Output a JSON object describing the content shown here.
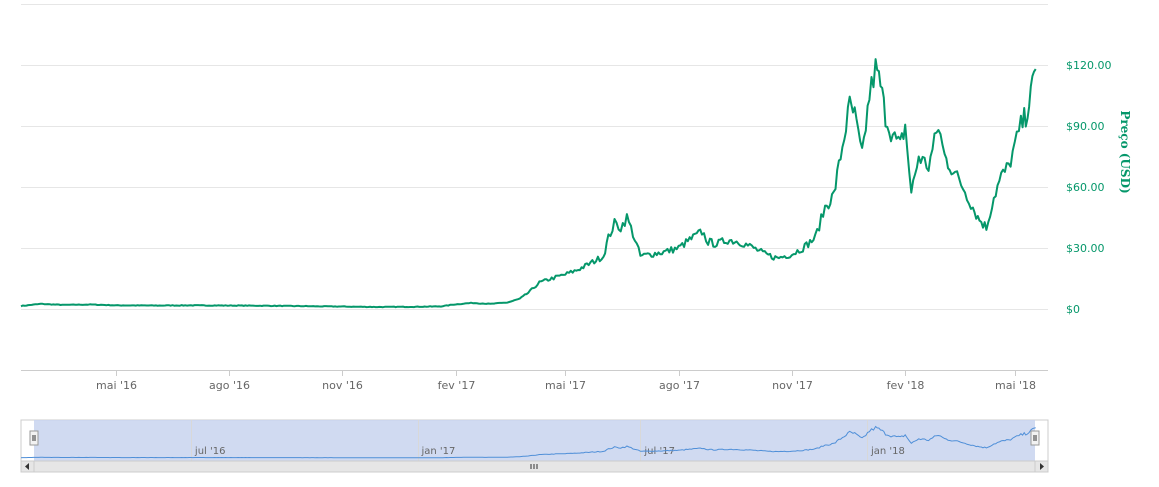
{
  "colors": {
    "line": "#05976a",
    "grid": "#e6e6e6",
    "navigator_fill": "#c8d4ee",
    "navigator_line": "#4f8fd8"
  },
  "chart_data": {
    "type": "line",
    "title": "",
    "xlabel": "",
    "ylabel": "Preço (USD)",
    "ylim": [
      -30,
      150
    ],
    "xlim": [
      "2016-02-14",
      "2018-05-28"
    ],
    "y_tick_labels": [
      "$0",
      "$30.00",
      "$60.00",
      "$90.00",
      "$120.00"
    ],
    "y_tick_values": [
      0,
      30,
      60,
      90,
      120
    ],
    "x_ticks": [
      {
        "date": "2016-05-01",
        "label": "mai '16"
      },
      {
        "date": "2016-08-01",
        "label": "ago '16"
      },
      {
        "date": "2016-11-01",
        "label": "nov '16"
      },
      {
        "date": "2017-02-01",
        "label": "fev '17"
      },
      {
        "date": "2017-05-01",
        "label": "mai '17"
      },
      {
        "date": "2017-08-01",
        "label": "ago '17"
      },
      {
        "date": "2017-11-01",
        "label": "nov '17"
      },
      {
        "date": "2018-02-01",
        "label": "fev '18"
      },
      {
        "date": "2018-05-01",
        "label": "mai '18"
      }
    ],
    "grid": true,
    "legend": "none",
    "series": [
      {
        "x": [
          "2016-02-14",
          "2016-03-01",
          "2016-03-20",
          "2016-04-10",
          "2016-05-01",
          "2016-06-01",
          "2016-07-01",
          "2016-08-01",
          "2016-09-01",
          "2016-10-01",
          "2016-11-01",
          "2016-12-01",
          "2017-01-01",
          "2017-01-20",
          "2017-02-01",
          "2017-02-15",
          "2017-03-01",
          "2017-03-15",
          "2017-03-25",
          "2017-04-01",
          "2017-04-10",
          "2017-04-20",
          "2017-05-01",
          "2017-05-10",
          "2017-05-20",
          "2017-06-01",
          "2017-06-05",
          "2017-06-10",
          "2017-06-15",
          "2017-06-20",
          "2017-06-25",
          "2017-07-01",
          "2017-07-10",
          "2017-07-20",
          "2017-08-01",
          "2017-08-10",
          "2017-08-20",
          "2017-08-25",
          "2017-09-01",
          "2017-09-10",
          "2017-09-20",
          "2017-10-01",
          "2017-10-10",
          "2017-10-20",
          "2017-11-01",
          "2017-11-10",
          "2017-11-20",
          "2017-11-28",
          "2017-12-05",
          "2017-12-12",
          "2017-12-18",
          "2017-12-22",
          "2017-12-28",
          "2018-01-03",
          "2018-01-08",
          "2018-01-12",
          "2018-01-16",
          "2018-01-22",
          "2018-01-28",
          "2018-02-01",
          "2018-02-06",
          "2018-02-12",
          "2018-02-20",
          "2018-02-28",
          "2018-03-05",
          "2018-03-12",
          "2018-03-20",
          "2018-03-28",
          "2018-04-01",
          "2018-04-08",
          "2018-04-14",
          "2018-04-20",
          "2018-04-26",
          "2018-05-01",
          "2018-05-06",
          "2018-05-10",
          "2018-05-14",
          "2018-05-18"
        ],
        "y": [
          1.5,
          2.5,
          2.0,
          2.2,
          1.8,
          1.7,
          1.8,
          1.7,
          1.6,
          1.4,
          1.2,
          1.0,
          1.1,
          1.3,
          2.3,
          3.0,
          2.5,
          3.2,
          5.0,
          8.0,
          13.0,
          15.0,
          17.0,
          19.0,
          22.0,
          26.0,
          35.0,
          42.0,
          40.0,
          45.0,
          37.0,
          26.0,
          27.0,
          28.0,
          30.0,
          34.0,
          38.0,
          33.0,
          32.0,
          34.0,
          33.0,
          30.0,
          27.0,
          25.0,
          27.0,
          30.0,
          35.0,
          50.0,
          56.0,
          80.0,
          100.0,
          95.0,
          75.0,
          105.0,
          118.0,
          110.0,
          95.0,
          85.0,
          80.0,
          90.0,
          57.0,
          75.0,
          70.0,
          90.0,
          75.0,
          68.0,
          60.0,
          50.0,
          45.0,
          40.0,
          55.0,
          65.0,
          70.0,
          80.0,
          90.0,
          95.0,
          105.0,
          118.0
        ]
      }
    ]
  }
}
